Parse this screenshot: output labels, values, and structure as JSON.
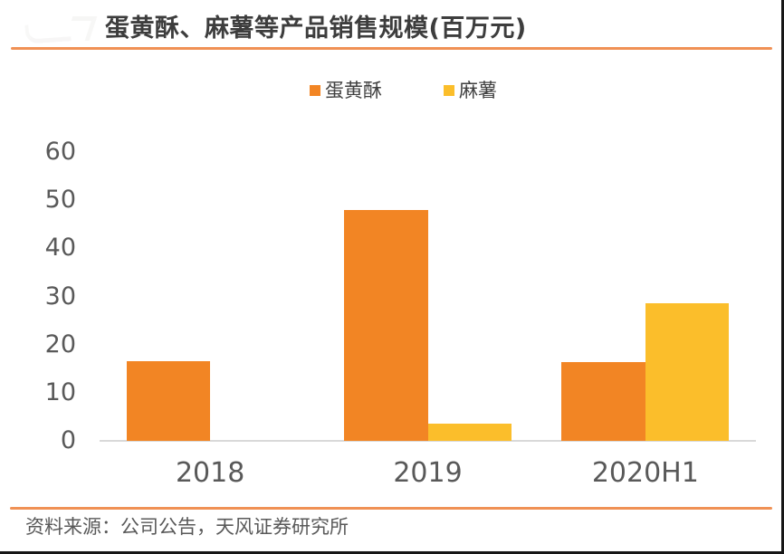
{
  "window": {
    "border_color": "#161616",
    "background": "#ffffff"
  },
  "header": {
    "title": "蛋黄酥、麻薯等产品销售规模(百万元)",
    "rule_color": "#F09155"
  },
  "legend": {
    "items": [
      {
        "label": "蛋黄酥",
        "color": "#F28524"
      },
      {
        "label": "麻薯",
        "color": "#FBBE2B"
      }
    ]
  },
  "axis": {
    "line_color": "#D9D9D9",
    "tick_text_color": "#595959"
  },
  "footer": {
    "rule_color": "#F09155",
    "source_note": "资料来源：公司公告，天风证券研究所"
  },
  "chart_data": {
    "type": "bar",
    "title": "蛋黄酥、麻薯等产品销售规模(百万元)",
    "unit": "百万元",
    "categories": [
      "2018",
      "2019",
      "2020H1"
    ],
    "series": [
      {
        "name": "蛋黄酥",
        "color": "#F28524",
        "values": [
          16.5,
          48,
          16.3
        ]
      },
      {
        "name": "麻薯",
        "color": "#FBBE2B",
        "values": [
          0,
          3.5,
          28.5
        ]
      }
    ],
    "xlabel": "",
    "ylabel": "",
    "ylim": [
      0,
      60
    ],
    "yticks": [
      0,
      10,
      20,
      30,
      40,
      50,
      60
    ],
    "grid": false,
    "legend_position": "top-center"
  }
}
